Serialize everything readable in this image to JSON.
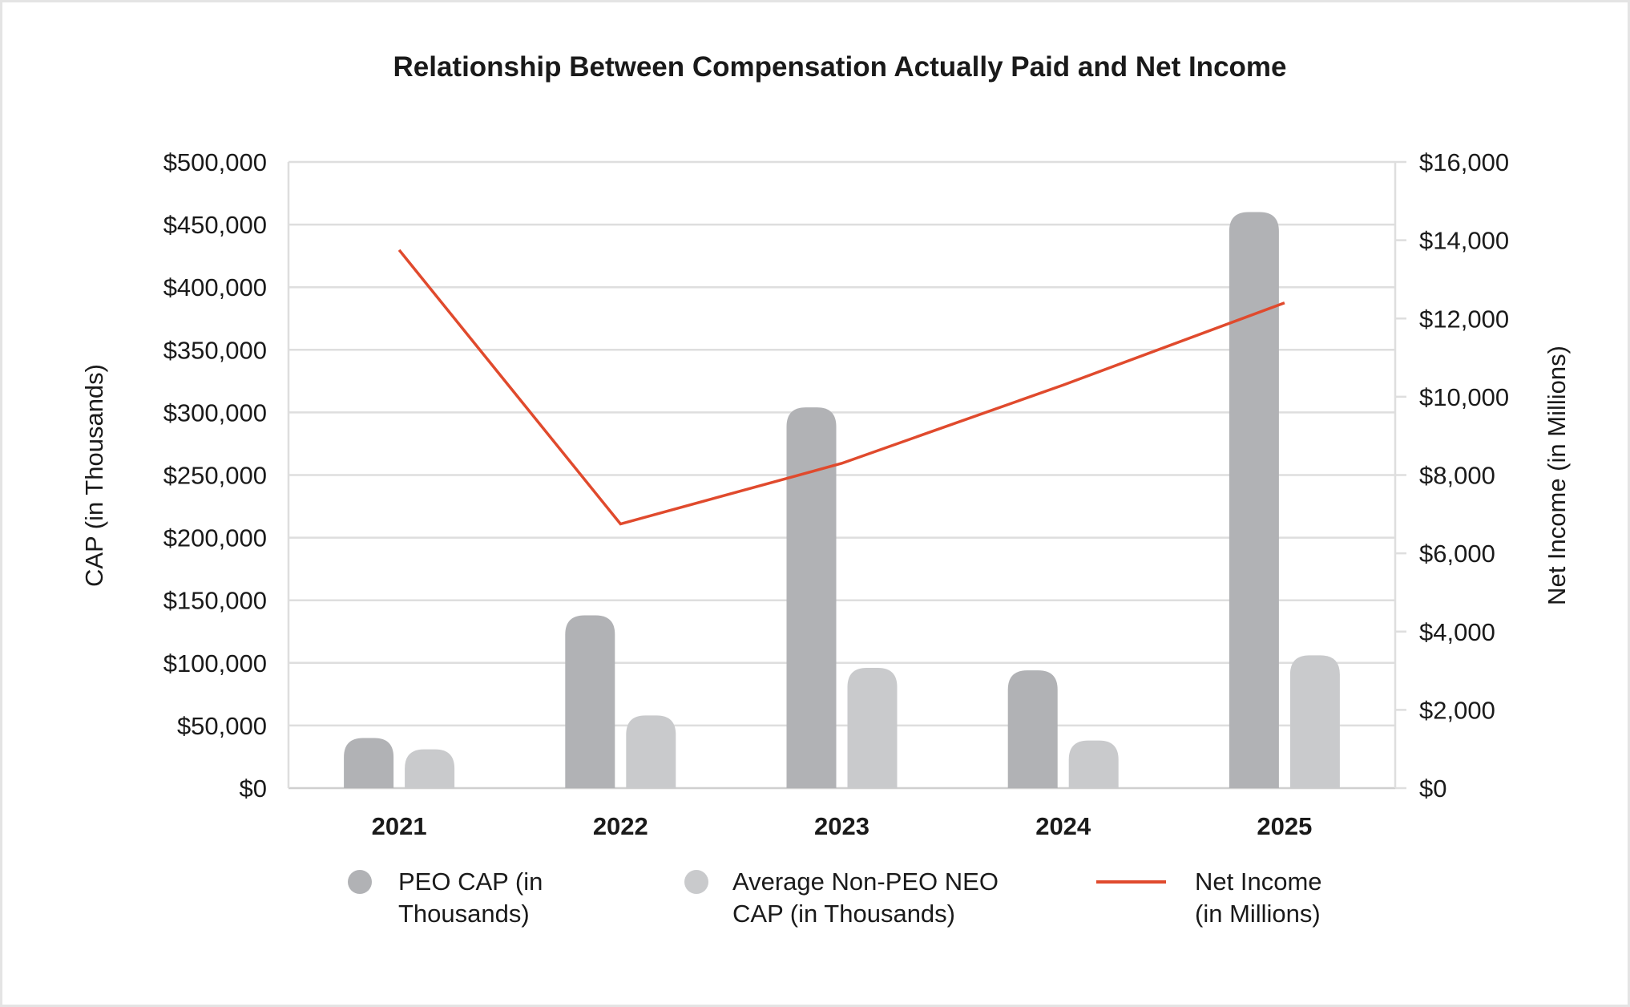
{
  "chart_data": {
    "type": "bar",
    "title": "Relationship Between Compensation Actually Paid and Net Income",
    "categories": [
      "2021",
      "2022",
      "2023",
      "2024",
      "2025"
    ],
    "series": [
      {
        "name": "PEO CAP (in Thousands)",
        "axis": "left",
        "type": "bar",
        "color": "#b1b2b5",
        "values": [
          40000,
          138000,
          304000,
          94000,
          460000
        ]
      },
      {
        "name": "Average Non-PEO NEO CAP (in Thousands)",
        "axis": "left",
        "type": "bar",
        "color": "#c9cacc",
        "values": [
          31000,
          58000,
          96000,
          38000,
          106000
        ]
      },
      {
        "name": "Net Income (in Millions)",
        "axis": "right",
        "type": "line",
        "color": "#e04a2d",
        "values": [
          13750,
          6750,
          8300,
          10300,
          12400
        ]
      }
    ],
    "ylabel": "CAP (in Thousands)",
    "y2label": "Net Income (in Millions)",
    "ylim": [
      0,
      500000
    ],
    "y2lim": [
      0,
      16000
    ],
    "yticks": [
      "$0",
      "$50,000",
      "$100,000",
      "$150,000",
      "$200,000",
      "$250,000",
      "$300,000",
      "$350,000",
      "$400,000",
      "$450,000",
      "$500,000"
    ],
    "y2ticks": [
      "$0",
      "$2,000",
      "$4,000",
      "$6,000",
      "$8,000",
      "$10,000",
      "$12,000",
      "$14,000",
      "$16,000"
    ],
    "grid": true,
    "legend_position": "bottom"
  },
  "legend": [
    {
      "line1": "PEO CAP (in",
      "line2": "Thousands)"
    },
    {
      "line1": "Average Non-PEO NEO",
      "line2": "CAP (in Thousands)"
    },
    {
      "line1": "Net Income",
      "line2": "(in Millions)"
    }
  ]
}
